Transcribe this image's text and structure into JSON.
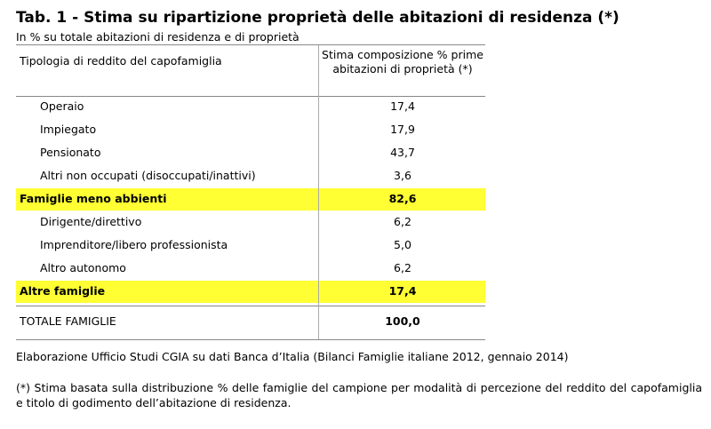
{
  "header": {
    "title": "Tab. 1 - Stima su ripartizione proprietà delle abitazioni di residenza (*)",
    "subtitle": "In % su totale abitazioni di residenza e di proprietà"
  },
  "table": {
    "columns": [
      "Tipologia di reddito del capofamiglia",
      "Stima composizione % prime abitazioni di proprietà (*)"
    ],
    "rows": [
      [
        "Operaio",
        "17,4"
      ],
      [
        "Impiegato",
        "17,9"
      ],
      [
        "Pensionato",
        "43,7"
      ],
      [
        "Altri non occupati (disoccupati/inattivi)",
        "3,6"
      ],
      [
        "Famiglie meno abbienti",
        "82,6"
      ],
      [
        "Dirigente/direttivo",
        "6,2"
      ],
      [
        "Imprenditore/libero professionista",
        "5,0"
      ],
      [
        "Altro autonomo",
        "6,2"
      ],
      [
        "Altre famiglie",
        "17,4"
      ],
      [
        "TOTALE FAMIGLIE",
        "100,0"
      ]
    ]
  },
  "footer": {
    "source": "Elaborazione Ufficio Studi CGIA su dati Banca d’Italia (Bilanci Famiglie italiane 2012, gennaio 2014)",
    "note": "(*) Stima basata sulla distribuzione % delle famiglie del campione per modalità di percezione del reddito del capofamiglia e titolo di godimento dell’abitazione di residenza."
  }
}
